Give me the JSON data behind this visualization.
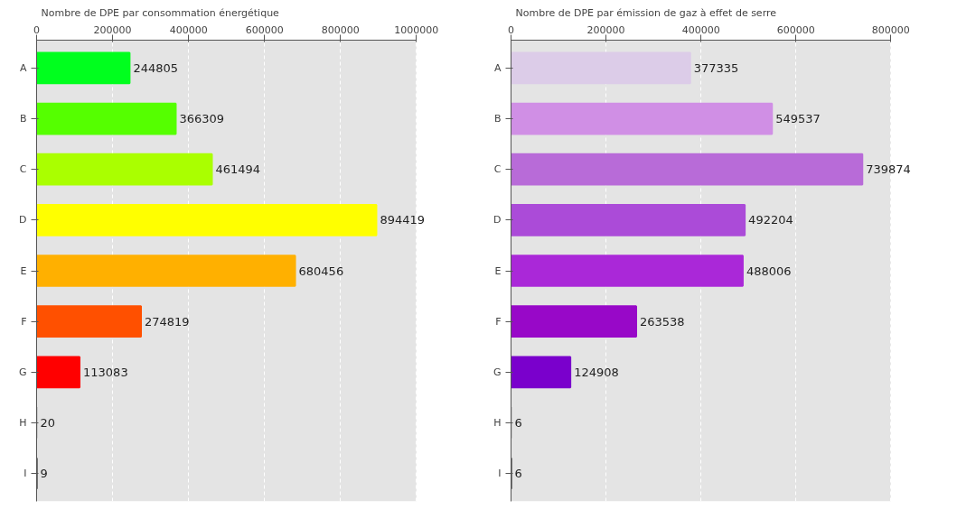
{
  "chart_data": [
    {
      "type": "bar",
      "orientation": "horizontal",
      "title": "Nombre de DPE par consommation énergétique",
      "categories": [
        "A",
        "B",
        "C",
        "D",
        "E",
        "F",
        "G",
        "H",
        "I"
      ],
      "values": [
        244805,
        366309,
        461494,
        894419,
        680456,
        274819,
        113083,
        20,
        9
      ],
      "colors": [
        "#00ff1e",
        "#55ff00",
        "#aaff00",
        "#ffff00",
        "#ffb000",
        "#ff5000",
        "#ff0000",
        "#b0b0b0",
        "#000000"
      ],
      "xlim": [
        0,
        1000000
      ],
      "xticks": [
        0,
        200000,
        400000,
        600000,
        800000,
        1000000
      ],
      "grid": "x",
      "data_labels": true
    },
    {
      "type": "bar",
      "orientation": "horizontal",
      "title": "Nombre de DPE par émission de gaz à effet de serre",
      "categories": [
        "A",
        "B",
        "C",
        "D",
        "E",
        "F",
        "G",
        "H",
        "I"
      ],
      "values": [
        377335,
        549537,
        739874,
        492204,
        488006,
        263538,
        124908,
        6,
        6
      ],
      "colors": [
        "#dccce8",
        "#d08fe5",
        "#b86bd8",
        "#ab4bd8",
        "#aa28d8",
        "#9808c8",
        "#7a00cc",
        "#b0b0b0",
        "#000000"
      ],
      "xlim": [
        0,
        800000
      ],
      "xticks": [
        0,
        200000,
        400000,
        600000,
        800000
      ],
      "grid": "x",
      "data_labels": true
    }
  ]
}
